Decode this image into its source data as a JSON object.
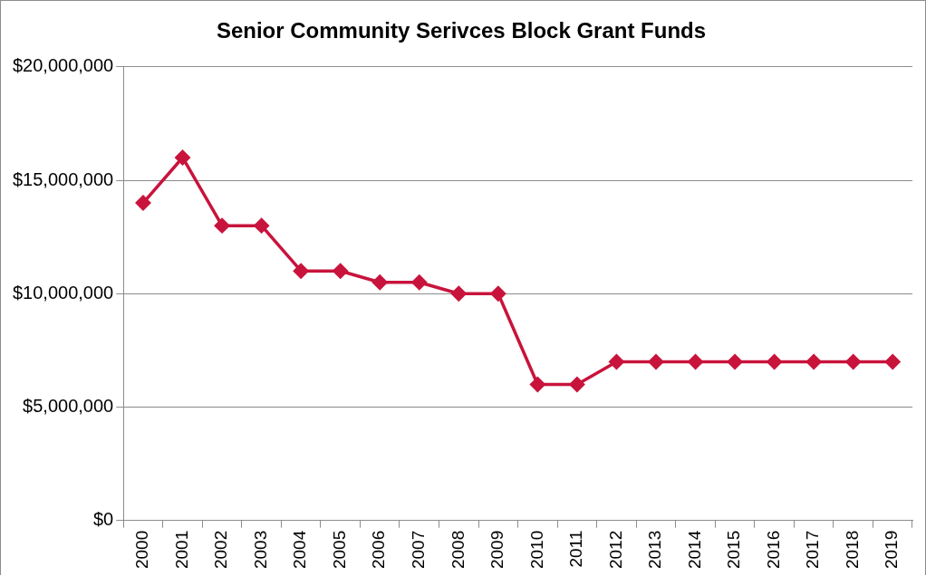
{
  "chart_data": {
    "type": "line",
    "title": "Senior Community Serivces Block Grant Funds",
    "categories": [
      "2000",
      "2001",
      "2002",
      "2003",
      "2004",
      "2005",
      "2006",
      "2007",
      "2008",
      "2009",
      "2010",
      "2011",
      "2012",
      "2013",
      "2014",
      "2015",
      "2016",
      "2017",
      "2018",
      "2019"
    ],
    "series": [
      {
        "color": "#c8143c",
        "values": [
          14000000,
          16000000,
          13000000,
          13000000,
          11000000,
          11000000,
          10500000,
          10500000,
          10000000,
          10000000,
          6000000,
          6000000,
          7000000,
          7000000,
          7000000,
          7000000,
          7000000,
          7000000,
          7000000,
          7000000
        ]
      }
    ],
    "ylim": [
      0,
      20000000
    ],
    "yticks": [
      {
        "value": 0,
        "label": "$0"
      },
      {
        "value": 5000000,
        "label": "$5,000,000"
      },
      {
        "value": 10000000,
        "label": "$10,000,000"
      },
      {
        "value": 15000000,
        "label": "$15,000,000"
      },
      {
        "value": 20000000,
        "label": "$20,000,000"
      }
    ],
    "grid": "y",
    "legend": false,
    "marker": "diamond",
    "line_style": "solid"
  }
}
